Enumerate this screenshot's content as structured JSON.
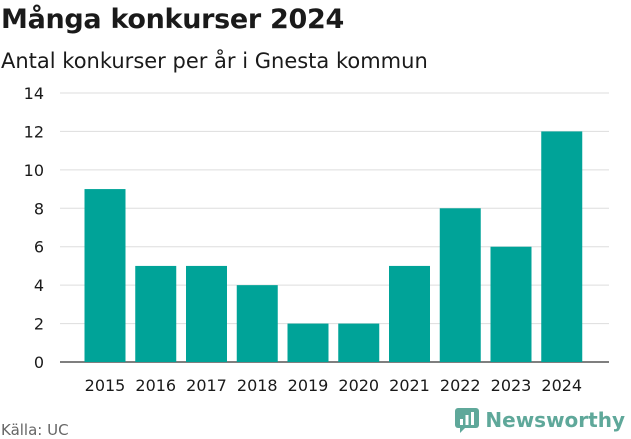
{
  "chart_data": {
    "type": "bar",
    "title": "Många konkurser 2024",
    "subtitle": "Antal konkurser per år i Gnesta kommun",
    "categories": [
      "2015",
      "2016",
      "2017",
      "2018",
      "2019",
      "2020",
      "2021",
      "2022",
      "2023",
      "2024"
    ],
    "values": [
      9,
      5,
      5,
      4,
      2,
      2,
      5,
      8,
      6,
      12
    ],
    "ylim": [
      0,
      14
    ],
    "yticks": [
      0,
      2,
      4,
      6,
      8,
      10,
      12,
      14
    ],
    "grid": true,
    "bar_color": "#00a398",
    "grid_color": "#dddddd",
    "source": "Källa: UC"
  },
  "brand": {
    "name": "Newsworthy",
    "icon": "newsworthy-logo-icon",
    "color": "#5fa89a"
  }
}
